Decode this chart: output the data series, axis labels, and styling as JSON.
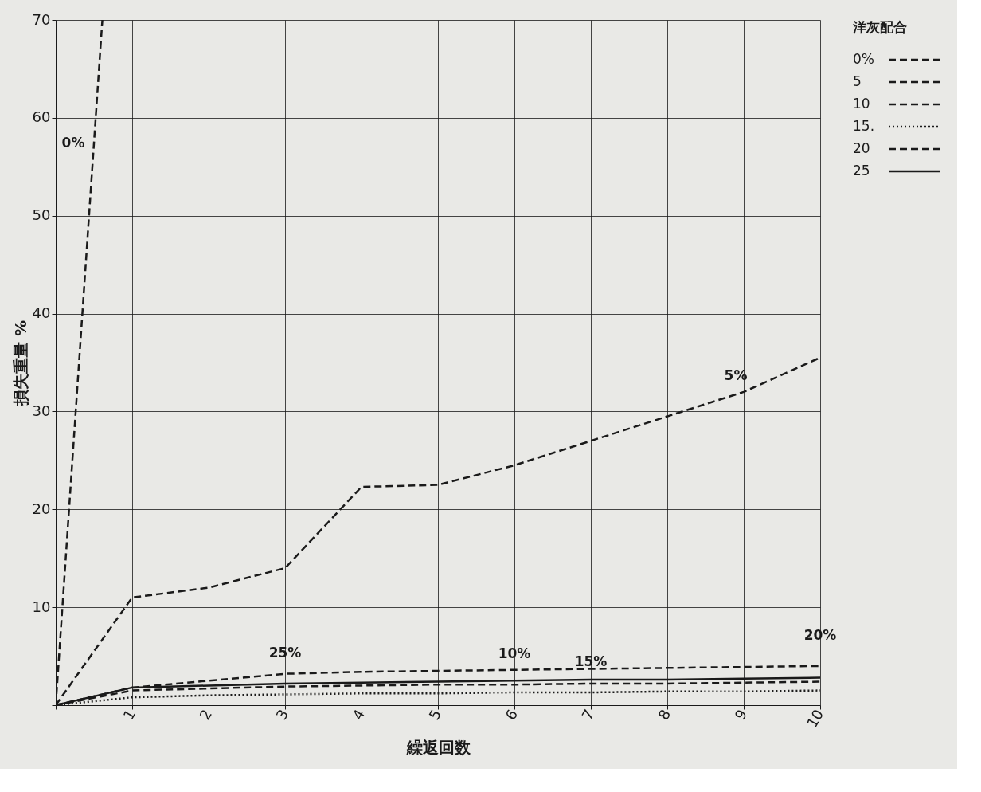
{
  "chart_data": {
    "type": "line",
    "xlabel": "繰返回数",
    "ylabel": "損失重量 %",
    "legend_title": "洋灰配合",
    "xlim": [
      0,
      10
    ],
    "ylim": [
      0,
      70
    ],
    "xticks": [
      {
        "value": 0,
        "label": null
      },
      1,
      2,
      3,
      4,
      5,
      6,
      7,
      8,
      9,
      10
    ],
    "yticks": [
      {
        "value": 0,
        "label": null
      },
      10,
      20,
      30,
      40,
      50,
      60,
      70
    ],
    "grid": true,
    "legend": "right",
    "marker": "none",
    "series": [
      {
        "name": "0%",
        "color": "#1a1a1a",
        "line_style": "dashed",
        "x": [
          0,
          0.5,
          0.61
        ],
        "values": [
          0,
          57.4,
          70
        ]
      },
      {
        "name": "5",
        "color": "#1a1a1a",
        "line_style": "dashed",
        "x": [
          0,
          1,
          2,
          3,
          4,
          5,
          6,
          7,
          8,
          9,
          10
        ],
        "values": [
          0,
          11,
          12,
          14,
          22.3,
          22.5,
          24.5,
          27,
          29.5,
          32,
          35.5
        ]
      },
      {
        "name": "10",
        "color": "#1a1a1a",
        "line_style": "dashed",
        "x": [
          0,
          1,
          2,
          3,
          4,
          5,
          6,
          7,
          8,
          9,
          10
        ],
        "values": [
          0,
          1.5,
          1.7,
          1.9,
          2,
          2.1,
          2.1,
          2.2,
          2.2,
          2.3,
          2.4
        ]
      },
      {
        "name": "15.",
        "color": "#1a1a1a",
        "line_style": "dotted",
        "x": [
          0,
          1,
          2,
          3,
          4,
          5,
          6,
          7,
          8,
          9,
          10
        ],
        "values": [
          0,
          0.8,
          1,
          1.1,
          1.2,
          1.2,
          1.3,
          1.3,
          1.4,
          1.4,
          1.5
        ]
      },
      {
        "name": "20",
        "color": "#1a1a1a",
        "line_style": "dashed",
        "x": [
          0,
          1,
          2,
          3,
          4,
          5,
          6,
          7,
          8,
          9,
          10
        ],
        "values": [
          0,
          1.8,
          2.5,
          3.2,
          3.4,
          3.5,
          3.6,
          3.7,
          3.8,
          3.9,
          4
        ]
      },
      {
        "name": "25",
        "color": "#1a1a1a",
        "line_style": "solid",
        "x": [
          0,
          1,
          2,
          3,
          4,
          5,
          6,
          7,
          8,
          9,
          10
        ],
        "values": [
          0,
          1.8,
          2,
          2.2,
          2.3,
          2.4,
          2.5,
          2.6,
          2.6,
          2.7,
          2.8
        ]
      }
    ],
    "annotations": [
      {
        "text": "0%",
        "x": 0.5,
        "y": 57.4
      },
      {
        "text": "5%",
        "x": 9,
        "y": 32
      },
      {
        "text": "25%",
        "x": 3,
        "y": 2.2
      },
      {
        "text": "10%",
        "x": 6,
        "y": 2.1
      },
      {
        "text": "15%",
        "x": 7,
        "y": 1.3
      },
      {
        "text": "20%",
        "x": 10,
        "y": 4
      }
    ]
  }
}
